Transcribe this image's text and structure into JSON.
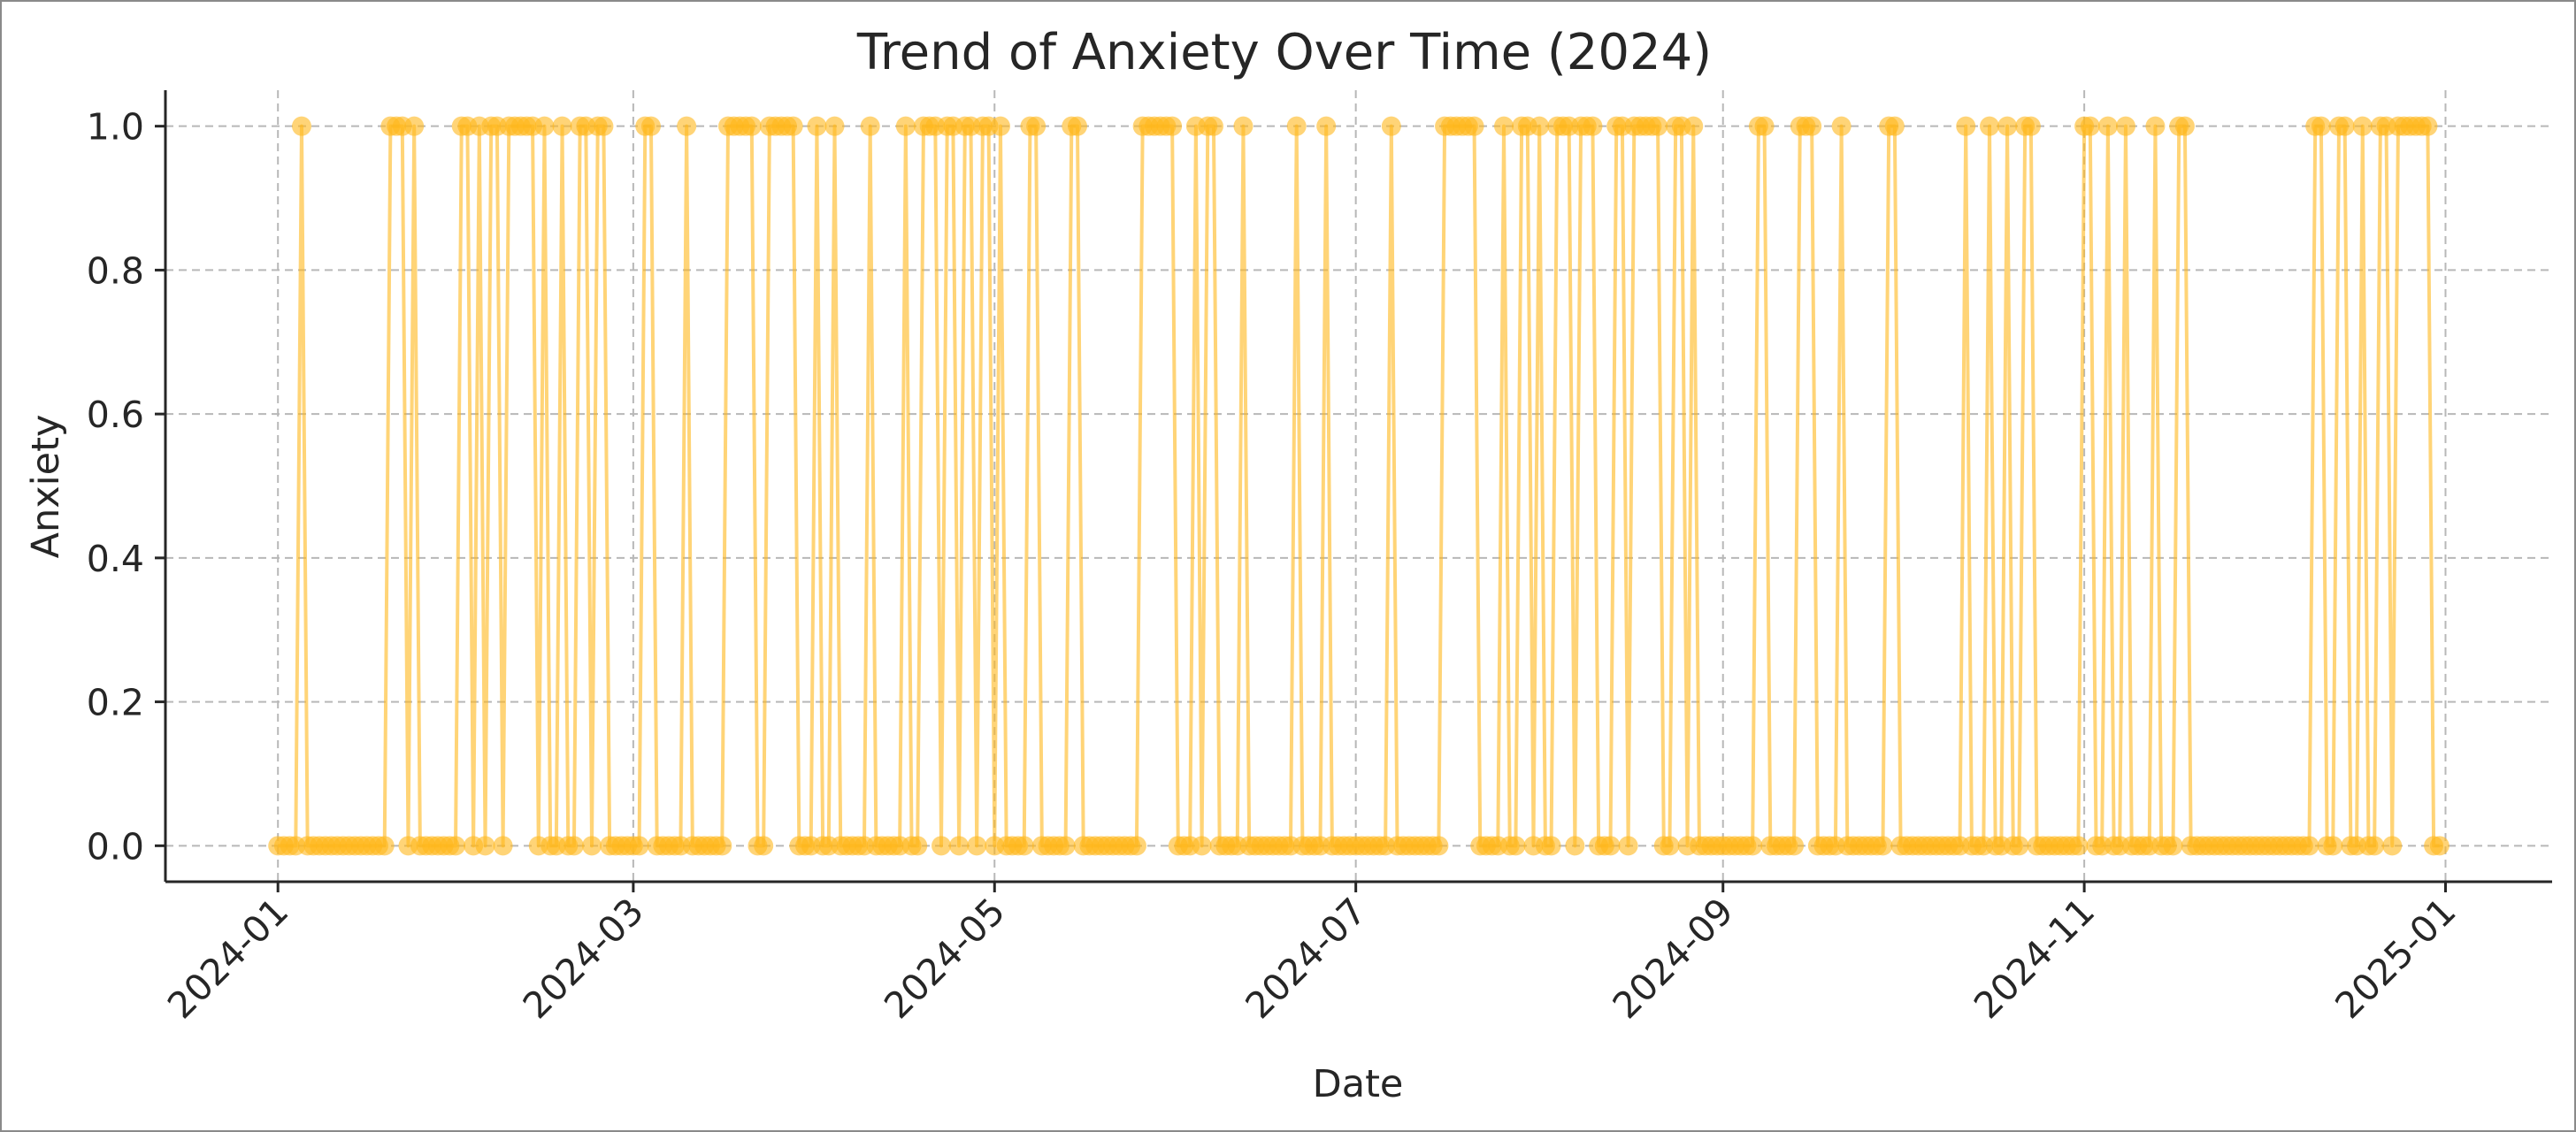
{
  "chart_data": {
    "type": "line",
    "title": "Trend of Anxiety Over Time (2024)",
    "xlabel": "Date",
    "ylabel": "Anxiety",
    "x_range": [
      "2024-01-01",
      "2024-12-31"
    ],
    "xlim": [
      "2023-12-13",
      "2025-01-19"
    ],
    "ylim": [
      -0.05,
      1.05
    ],
    "x_ticks": [
      "2024-01-01",
      "2024-03-01",
      "2024-05-01",
      "2024-07-01",
      "2024-09-01",
      "2024-11-01",
      "2025-01-01"
    ],
    "x_tick_labels": [
      "2024-01",
      "2024-03",
      "2024-05",
      "2024-07",
      "2024-09",
      "2024-11",
      "2025-01"
    ],
    "y_ticks": [
      0.0,
      0.2,
      0.4,
      0.6,
      0.8,
      1.0
    ],
    "y_tick_labels": [
      "0.0",
      "0.2",
      "0.4",
      "0.6",
      "0.8",
      "1.0"
    ],
    "grid": true,
    "marker": "circle",
    "series": [
      {
        "color": "#FFB81C",
        "high_dates": [
          "2024-01-05",
          "2024-01-20",
          "2024-01-21",
          "2024-01-22",
          "2024-01-24",
          "2024-02-01",
          "2024-02-02",
          "2024-02-04",
          "2024-02-06",
          "2024-02-07",
          "2024-02-09",
          "2024-02-10",
          "2024-02-11",
          "2024-02-12",
          "2024-02-13",
          "2024-02-15",
          "2024-02-18",
          "2024-02-21",
          "2024-02-22",
          "2024-02-24",
          "2024-02-25",
          "2024-03-03",
          "2024-03-04",
          "2024-03-10",
          "2024-03-17",
          "2024-03-18",
          "2024-03-19",
          "2024-03-20",
          "2024-03-21",
          "2024-03-24",
          "2024-03-25",
          "2024-03-26",
          "2024-03-27",
          "2024-03-28",
          "2024-04-01",
          "2024-04-04",
          "2024-04-10",
          "2024-04-16",
          "2024-04-19",
          "2024-04-20",
          "2024-04-21",
          "2024-04-23",
          "2024-04-24",
          "2024-04-26",
          "2024-04-27",
          "2024-04-29",
          "2024-04-30",
          "2024-05-02",
          "2024-05-07",
          "2024-05-08",
          "2024-05-14",
          "2024-05-15",
          "2024-05-26",
          "2024-05-27",
          "2024-05-28",
          "2024-05-29",
          "2024-05-30",
          "2024-05-31",
          "2024-06-04",
          "2024-06-06",
          "2024-06-07",
          "2024-06-12",
          "2024-06-21",
          "2024-06-26",
          "2024-07-07",
          "2024-07-16",
          "2024-07-17",
          "2024-07-18",
          "2024-07-19",
          "2024-07-20",
          "2024-07-21",
          "2024-07-26",
          "2024-07-29",
          "2024-07-30",
          "2024-08-01",
          "2024-08-04",
          "2024-08-05",
          "2024-08-06",
          "2024-08-08",
          "2024-08-09",
          "2024-08-10",
          "2024-08-14",
          "2024-08-15",
          "2024-08-17",
          "2024-08-18",
          "2024-08-19",
          "2024-08-20",
          "2024-08-21",
          "2024-08-24",
          "2024-08-25",
          "2024-08-27",
          "2024-09-07",
          "2024-09-08",
          "2024-09-14",
          "2024-09-15",
          "2024-09-16",
          "2024-09-21",
          "2024-09-29",
          "2024-09-30",
          "2024-10-12",
          "2024-10-16",
          "2024-10-19",
          "2024-10-22",
          "2024-10-23",
          "2024-11-01",
          "2024-11-02",
          "2024-11-05",
          "2024-11-08",
          "2024-11-13",
          "2024-11-17",
          "2024-11-18",
          "2024-12-10",
          "2024-12-11",
          "2024-12-14",
          "2024-12-15",
          "2024-12-18",
          "2024-12-21",
          "2024-12-22",
          "2024-12-24",
          "2024-12-25",
          "2024-12-26",
          "2024-12-27",
          "2024-12-28",
          "2024-12-29"
        ]
      }
    ]
  }
}
